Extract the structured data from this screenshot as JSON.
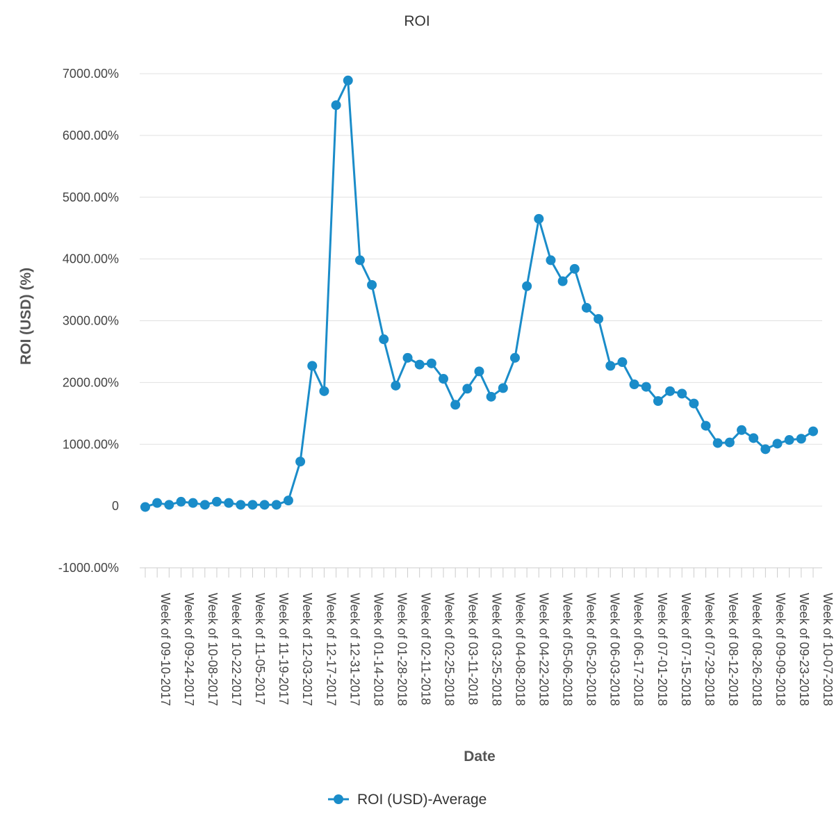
{
  "chart_data": {
    "type": "line",
    "title": "ROI",
    "xlabel": "Date",
    "ylabel": "ROI (USD) (%)",
    "ylim": [
      -1000,
      7000
    ],
    "y_ticks": [
      -1000,
      0,
      1000,
      2000,
      3000,
      4000,
      5000,
      6000,
      7000
    ],
    "y_tick_labels": [
      "-1000.00%",
      "0",
      "1000.00%",
      "2000.00%",
      "3000.00%",
      "4000.00%",
      "5000.00%",
      "6000.00%",
      "7000.00%"
    ],
    "grid": true,
    "legend_position": "bottom-center",
    "color": "#1a8cc9",
    "x_tick_labels": [
      "Week of 09-10-2017",
      "Week of 09-24-2017",
      "Week of 10-08-2017",
      "Week of 10-22-2017",
      "Week of 11-05-2017",
      "Week of 11-19-2017",
      "Week of 12-03-2017",
      "Week of 12-17-2017",
      "Week of 12-31-2017",
      "Week of 01-14-2018",
      "Week of 01-28-2018",
      "Week of 02-11-2018",
      "Week of 02-25-2018",
      "Week of 03-11-2018",
      "Week of 03-25-2018",
      "Week of 04-08-2018",
      "Week of 04-22-2018",
      "Week of 05-06-2018",
      "Week of 05-20-2018",
      "Week of 06-03-2018",
      "Week of 06-17-2018",
      "Week of 07-01-2018",
      "Week of 07-15-2018",
      "Week of 07-29-2018",
      "Week of 08-12-2018",
      "Week of 08-26-2018",
      "Week of 09-09-2018",
      "Week of 09-23-2018",
      "Week of 10-07-2018"
    ],
    "series": [
      {
        "name": "ROI (USD)-Average",
        "values": [
          -15,
          50,
          20,
          70,
          50,
          20,
          70,
          50,
          20,
          20,
          20,
          20,
          90,
          720,
          2270,
          1860,
          6490,
          6890,
          3980,
          3580,
          2700,
          1950,
          2400,
          2290,
          2310,
          2060,
          1640,
          1900,
          2180,
          1770,
          1910,
          2400,
          3560,
          4650,
          3980,
          3640,
          3840,
          3210,
          3030,
          2270,
          2330,
          1970,
          1930,
          1700,
          1860,
          1820,
          1660,
          1300,
          1020,
          1030,
          1230,
          1100,
          920,
          1010,
          1070,
          1090,
          1210
        ]
      }
    ]
  }
}
